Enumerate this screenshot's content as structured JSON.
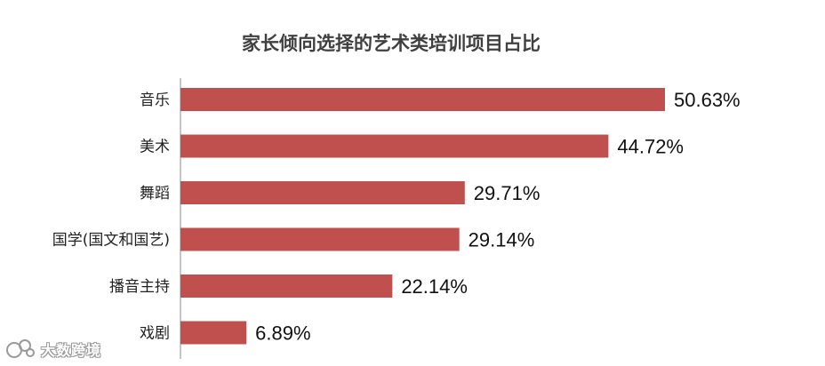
{
  "chart_data": {
    "type": "bar",
    "orientation": "horizontal",
    "title": "家长倾向选择的艺术类培训项目占比",
    "categories": [
      "音乐",
      "美术",
      "舞蹈",
      "国学(国文和国艺)",
      "播音主持",
      "戏剧"
    ],
    "values": [
      50.63,
      44.72,
      29.71,
      29.14,
      22.14,
      6.89
    ],
    "data_labels": [
      "50.63%",
      "44.72%",
      "29.71%",
      "29.14%",
      "22.14%",
      "6.89%"
    ],
    "unit": "%",
    "bar_color": "#C0504D",
    "xlim": [
      0,
      50.63
    ],
    "grid": false,
    "legend": "none"
  },
  "watermark": {
    "text": "大数跨境"
  }
}
